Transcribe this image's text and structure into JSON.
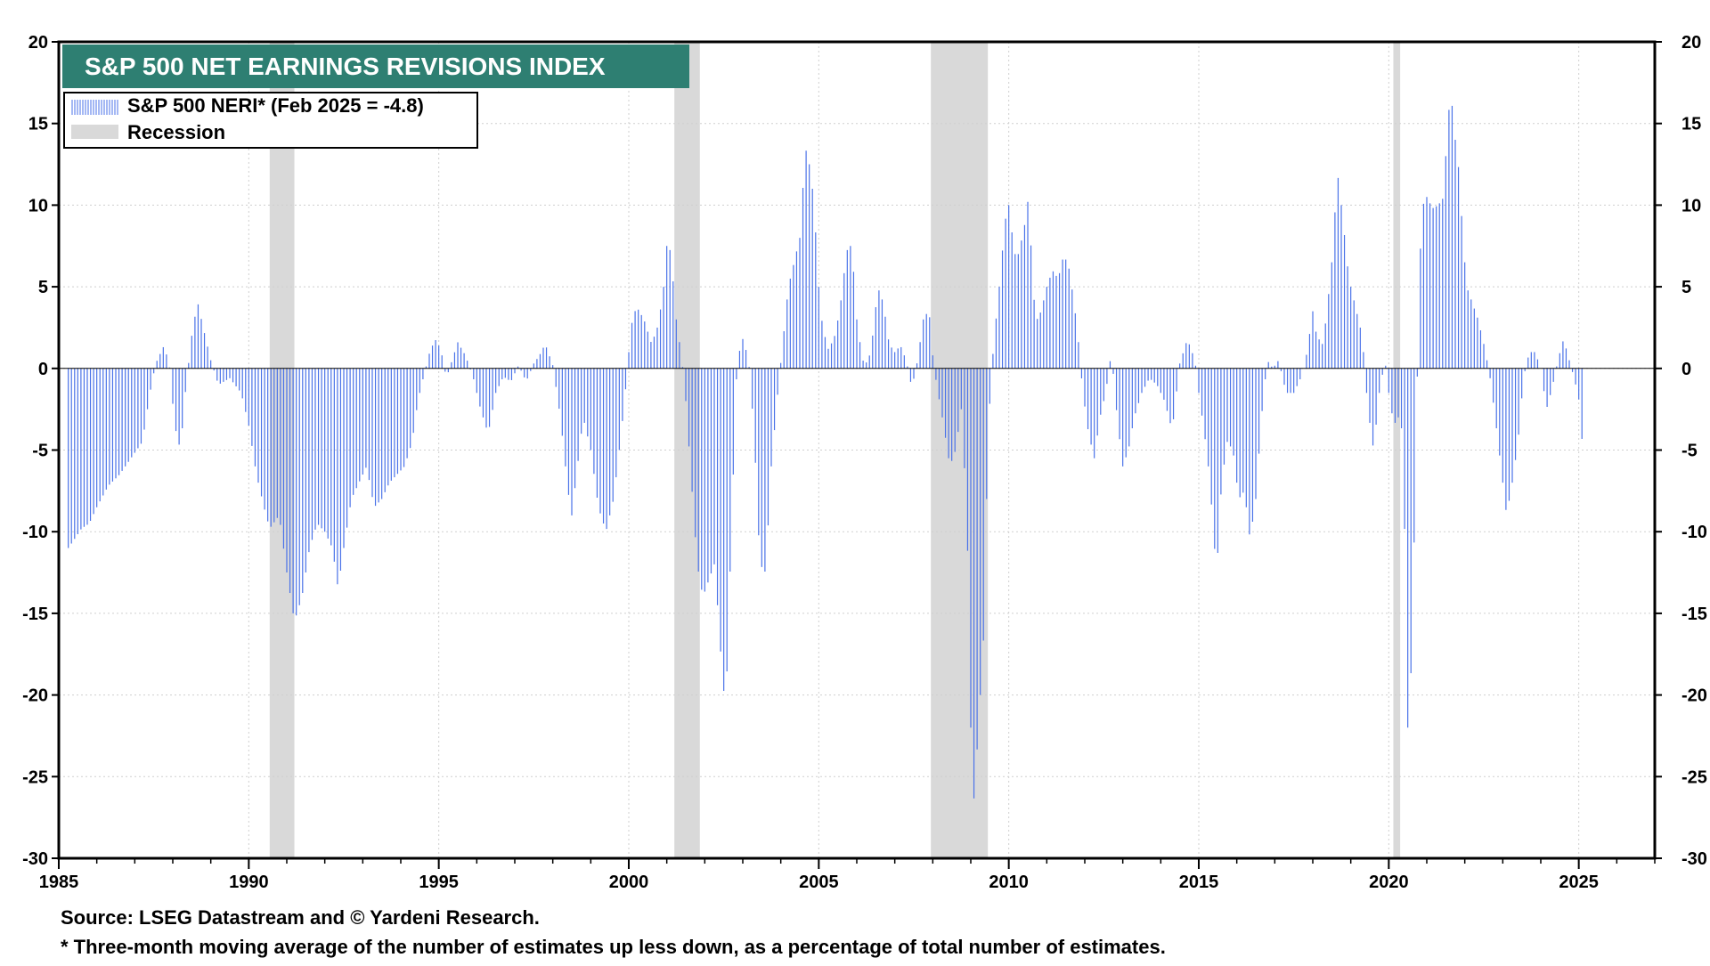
{
  "chart_data": {
    "type": "bar",
    "title": "S&P 500 NET EARNINGS REVISIONS INDEX",
    "legend": [
      {
        "label": "S&P 500 NERI* (Feb 2025 = -4.8)",
        "color": "#4a72e8",
        "kind": "bars"
      },
      {
        "label": "Recession",
        "color": "#d9d9d9",
        "kind": "shade"
      }
    ],
    "legend_placement": "top-left",
    "xlim": [
      1985,
      2027
    ],
    "ylim": [
      -30,
      20
    ],
    "x_ticks": [
      "1985",
      "1990",
      "1995",
      "2000",
      "2005",
      "2010",
      "2015",
      "2020",
      "2025"
    ],
    "y_ticks": [
      "20",
      "15",
      "10",
      "5",
      "0",
      "-5",
      "-10",
      "-15",
      "-20",
      "-25",
      "-30"
    ],
    "y_axis_both_sides": true,
    "grid": true,
    "recessions": [
      [
        1990.55,
        1991.2
      ],
      [
        2001.2,
        2001.87
      ],
      [
        2007.95,
        2009.45
      ],
      [
        2020.12,
        2020.3
      ]
    ],
    "series_name": "S&P 500 NERI*",
    "anchors": [
      [
        1985.25,
        -11
      ],
      [
        1985.4,
        -10.5
      ],
      [
        1985.6,
        -9.8
      ],
      [
        1985.8,
        -9.5
      ],
      [
        1986.0,
        -8.5
      ],
      [
        1986.3,
        -7.2
      ],
      [
        1986.6,
        -6.5
      ],
      [
        1986.9,
        -5.5
      ],
      [
        1987.2,
        -4.5
      ],
      [
        1987.4,
        -1.5
      ],
      [
        1987.55,
        0.3
      ],
      [
        1987.75,
        1.3
      ],
      [
        1987.9,
        0.5
      ],
      [
        1988.05,
        -3.5
      ],
      [
        1988.2,
        -5
      ],
      [
        1988.35,
        -1
      ],
      [
        1988.5,
        2
      ],
      [
        1988.65,
        4.1
      ],
      [
        1988.8,
        2.5
      ],
      [
        1989.0,
        0.5
      ],
      [
        1989.2,
        -1
      ],
      [
        1989.5,
        -0.6
      ],
      [
        1989.8,
        -1.5
      ],
      [
        1990.0,
        -3.5
      ],
      [
        1990.2,
        -6.5
      ],
      [
        1990.4,
        -8.5
      ],
      [
        1990.55,
        -9.8
      ],
      [
        1990.8,
        -9
      ],
      [
        1991.0,
        -12.5
      ],
      [
        1991.2,
        -15.5
      ],
      [
        1991.4,
        -14
      ],
      [
        1991.6,
        -11
      ],
      [
        1991.8,
        -9.5
      ],
      [
        1992.0,
        -10
      ],
      [
        1992.2,
        -11
      ],
      [
        1992.35,
        -13.5
      ],
      [
        1992.5,
        -11
      ],
      [
        1992.7,
        -8
      ],
      [
        1992.9,
        -7
      ],
      [
        1993.1,
        -6
      ],
      [
        1993.3,
        -8.5
      ],
      [
        1993.5,
        -8
      ],
      [
        1993.7,
        -7
      ],
      [
        1993.9,
        -6.5
      ],
      [
        1994.1,
        -6
      ],
      [
        1994.3,
        -4.5
      ],
      [
        1994.45,
        -2
      ],
      [
        1994.6,
        -0.5
      ],
      [
        1994.75,
        0.9
      ],
      [
        1994.9,
        1.8
      ],
      [
        1995.05,
        1.2
      ],
      [
        1995.2,
        -0.6
      ],
      [
        1995.35,
        0.5
      ],
      [
        1995.5,
        1.6
      ],
      [
        1995.7,
        0.8
      ],
      [
        1995.9,
        -0.5
      ],
      [
        1996.1,
        -2.5
      ],
      [
        1996.3,
        -4
      ],
      [
        1996.5,
        -1.5
      ],
      [
        1996.7,
        -0.5
      ],
      [
        1996.9,
        -0.8
      ],
      [
        1997.1,
        0.2
      ],
      [
        1997.3,
        -0.8
      ],
      [
        1997.5,
        0.3
      ],
      [
        1997.65,
        0.8
      ],
      [
        1997.8,
        1.5
      ],
      [
        1998.0,
        0.2
      ],
      [
        1998.2,
        -3
      ],
      [
        1998.4,
        -7.5
      ],
      [
        1998.5,
        -9
      ],
      [
        1998.65,
        -6
      ],
      [
        1998.8,
        -3
      ],
      [
        1999.0,
        -5
      ],
      [
        1999.2,
        -8.5
      ],
      [
        1999.4,
        -10
      ],
      [
        1999.6,
        -8
      ],
      [
        1999.8,
        -4
      ],
      [
        1999.95,
        -0.5
      ],
      [
        2000.05,
        2.5
      ],
      [
        2000.2,
        3.8
      ],
      [
        2000.4,
        3
      ],
      [
        2000.6,
        1.5
      ],
      [
        2000.75,
        2.5
      ],
      [
        2000.9,
        4.5
      ],
      [
        2001.0,
        7.5
      ],
      [
        2001.1,
        7.2
      ],
      [
        2001.25,
        3
      ],
      [
        2001.4,
        0.5
      ],
      [
        2001.5,
        -2
      ],
      [
        2001.65,
        -7
      ],
      [
        2001.8,
        -12
      ],
      [
        2001.95,
        -14
      ],
      [
        2002.1,
        -13
      ],
      [
        2002.25,
        -12
      ],
      [
        2002.35,
        -15
      ],
      [
        2002.45,
        -18.5
      ],
      [
        2002.55,
        -21
      ],
      [
        2002.7,
        -10
      ],
      [
        2002.85,
        0.5
      ],
      [
        2003.0,
        1.8
      ],
      [
        2003.15,
        0.6
      ],
      [
        2003.3,
        -4
      ],
      [
        2003.45,
        -12
      ],
      [
        2003.6,
        -12.5
      ],
      [
        2003.75,
        -6
      ],
      [
        2003.9,
        -2
      ],
      [
        2004.05,
        1.5
      ],
      [
        2004.2,
        5
      ],
      [
        2004.35,
        6.5
      ],
      [
        2004.5,
        8
      ],
      [
        2004.65,
        13.5
      ],
      [
        2004.8,
        12
      ],
      [
        2004.9,
        9
      ],
      [
        2005.0,
        5
      ],
      [
        2005.1,
        2.5
      ],
      [
        2005.25,
        1.2
      ],
      [
        2005.4,
        1.8
      ],
      [
        2005.55,
        3.5
      ],
      [
        2005.7,
        6.5
      ],
      [
        2005.8,
        8
      ],
      [
        2005.9,
        6.5
      ],
      [
        2006.0,
        3
      ],
      [
        2006.15,
        0.5
      ],
      [
        2006.3,
        0.3
      ],
      [
        2006.45,
        2.5
      ],
      [
        2006.55,
        5
      ],
      [
        2006.7,
        4
      ],
      [
        2006.85,
        1.5
      ],
      [
        2007.0,
        1
      ],
      [
        2007.15,
        1.4
      ],
      [
        2007.3,
        0.5
      ],
      [
        2007.45,
        -1.2
      ],
      [
        2007.6,
        0.5
      ],
      [
        2007.75,
        3
      ],
      [
        2007.9,
        3.6
      ],
      [
        2008.0,
        0.8
      ],
      [
        2008.1,
        -1
      ],
      [
        2008.25,
        -3
      ],
      [
        2008.45,
        -6
      ],
      [
        2008.6,
        -5
      ],
      [
        2008.75,
        -2.5
      ],
      [
        2008.9,
        -9
      ],
      [
        2009.0,
        -22
      ],
      [
        2009.05,
        -27.5
      ],
      [
        2009.15,
        -24
      ],
      [
        2009.25,
        -20
      ],
      [
        2009.35,
        -16
      ],
      [
        2009.45,
        -4
      ],
      [
        2009.6,
        1.5
      ],
      [
        2009.75,
        5
      ],
      [
        2009.9,
        9
      ],
      [
        2010.0,
        10
      ],
      [
        2010.1,
        8
      ],
      [
        2010.2,
        6.5
      ],
      [
        2010.4,
        8.5
      ],
      [
        2010.5,
        10.2
      ],
      [
        2010.6,
        7
      ],
      [
        2010.7,
        2.8
      ],
      [
        2010.85,
        3.5
      ],
      [
        2011.0,
        5
      ],
      [
        2011.15,
        6
      ],
      [
        2011.3,
        5.5
      ],
      [
        2011.45,
        7
      ],
      [
        2011.6,
        6
      ],
      [
        2011.8,
        2.5
      ],
      [
        2011.95,
        -1.5
      ],
      [
        2012.1,
        -4
      ],
      [
        2012.25,
        -5.5
      ],
      [
        2012.4,
        -3
      ],
      [
        2012.55,
        -1.5
      ],
      [
        2012.7,
        1
      ],
      [
        2012.85,
        -3
      ],
      [
        2013.0,
        -6
      ],
      [
        2013.15,
        -5
      ],
      [
        2013.3,
        -3
      ],
      [
        2013.5,
        -1.5
      ],
      [
        2013.7,
        -0.6
      ],
      [
        2013.9,
        -1
      ],
      [
        2014.1,
        -2
      ],
      [
        2014.3,
        -3.8
      ],
      [
        2014.5,
        0.3
      ],
      [
        2014.7,
        1.8
      ],
      [
        2014.9,
        0.5
      ],
      [
        2015.0,
        -1.5
      ],
      [
        2015.15,
        -4
      ],
      [
        2015.3,
        -7
      ],
      [
        2015.4,
        -11
      ],
      [
        2015.5,
        -11.3
      ],
      [
        2015.6,
        -7
      ],
      [
        2015.75,
        -4.5
      ],
      [
        2015.9,
        -5
      ],
      [
        2016.05,
        -8
      ],
      [
        2016.2,
        -7.5
      ],
      [
        2016.35,
        -10.5
      ],
      [
        2016.5,
        -8
      ],
      [
        2016.65,
        -3
      ],
      [
        2016.8,
        0.5
      ],
      [
        2016.95,
        0
      ],
      [
        2017.1,
        0.5
      ],
      [
        2017.3,
        -1.5
      ],
      [
        2017.5,
        -1.5
      ],
      [
        2017.7,
        -0.5
      ],
      [
        2017.85,
        1
      ],
      [
        2018.0,
        3.5
      ],
      [
        2018.1,
        2
      ],
      [
        2018.25,
        1.5
      ],
      [
        2018.35,
        3
      ],
      [
        2018.5,
        6.5
      ],
      [
        2018.65,
        12
      ],
      [
        2018.8,
        9
      ],
      [
        2018.9,
        6.5
      ],
      [
        2019.0,
        5
      ],
      [
        2019.15,
        3.5
      ],
      [
        2019.3,
        2
      ],
      [
        2019.45,
        -2.5
      ],
      [
        2019.6,
        -5
      ],
      [
        2019.75,
        -1.5
      ],
      [
        2019.9,
        0.5
      ],
      [
        2020.0,
        -1.5
      ],
      [
        2020.1,
        -3
      ],
      [
        2020.2,
        -3.5
      ],
      [
        2020.3,
        -2.5
      ],
      [
        2020.4,
        -6
      ],
      [
        2020.45,
        -17.5
      ],
      [
        2020.5,
        -22
      ],
      [
        2020.6,
        -18
      ],
      [
        2020.7,
        -7
      ],
      [
        2020.8,
        6
      ],
      [
        2020.9,
        10
      ],
      [
        2021.0,
        10.5
      ],
      [
        2021.15,
        9.8
      ],
      [
        2021.3,
        10
      ],
      [
        2021.45,
        10.5
      ],
      [
        2021.55,
        15.5
      ],
      [
        2021.65,
        16.5
      ],
      [
        2021.75,
        14
      ],
      [
        2021.85,
        12
      ],
      [
        2021.95,
        8
      ],
      [
        2022.05,
        5
      ],
      [
        2022.2,
        4
      ],
      [
        2022.35,
        3
      ],
      [
        2022.5,
        1.5
      ],
      [
        2022.65,
        -0.3
      ],
      [
        2022.8,
        -3
      ],
      [
        2022.95,
        -6
      ],
      [
        2023.1,
        -9
      ],
      [
        2023.25,
        -7
      ],
      [
        2023.4,
        -4.5
      ],
      [
        2023.55,
        -0.5
      ],
      [
        2023.7,
        1
      ],
      [
        2023.85,
        1
      ],
      [
        2024.0,
        0
      ],
      [
        2024.15,
        -2.5
      ],
      [
        2024.3,
        -1.2
      ],
      [
        2024.45,
        0.5
      ],
      [
        2024.6,
        1.8
      ],
      [
        2024.75,
        0.5
      ],
      [
        2024.9,
        -0.8
      ],
      [
        2025.0,
        -1.9
      ],
      [
        2025.1,
        -4.8
      ]
    ],
    "data_interval": "monthly"
  },
  "footer": {
    "source": "Source: LSEG Datastream and © Yardeni Research.",
    "note": "* Three-month moving average of the number of estimates up less down, as a percentage of total number of estimates."
  }
}
